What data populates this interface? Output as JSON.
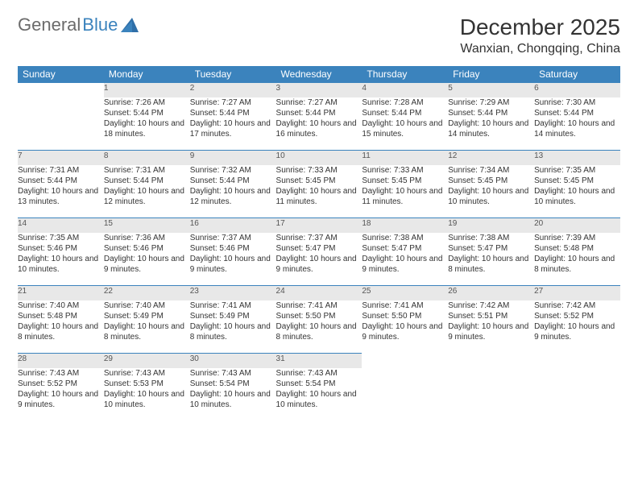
{
  "logo": {
    "part1": "General",
    "part2": "Blue"
  },
  "title": "December 2025",
  "location": "Wanxian, Chongqing, China",
  "colors": {
    "header_bg": "#3b83bd",
    "header_text": "#ffffff",
    "daynum_bg": "#e8e8e8",
    "daynum_border": "#3b83bd",
    "logo_gray": "#6b6b6b",
    "logo_blue": "#3b83bd"
  },
  "weekdays": [
    "Sunday",
    "Monday",
    "Tuesday",
    "Wednesday",
    "Thursday",
    "Friday",
    "Saturday"
  ],
  "weeks": [
    [
      null,
      {
        "n": "1",
        "sr": "Sunrise: 7:26 AM",
        "ss": "Sunset: 5:44 PM",
        "dl": "Daylight: 10 hours and 18 minutes."
      },
      {
        "n": "2",
        "sr": "Sunrise: 7:27 AM",
        "ss": "Sunset: 5:44 PM",
        "dl": "Daylight: 10 hours and 17 minutes."
      },
      {
        "n": "3",
        "sr": "Sunrise: 7:27 AM",
        "ss": "Sunset: 5:44 PM",
        "dl": "Daylight: 10 hours and 16 minutes."
      },
      {
        "n": "4",
        "sr": "Sunrise: 7:28 AM",
        "ss": "Sunset: 5:44 PM",
        "dl": "Daylight: 10 hours and 15 minutes."
      },
      {
        "n": "5",
        "sr": "Sunrise: 7:29 AM",
        "ss": "Sunset: 5:44 PM",
        "dl": "Daylight: 10 hours and 14 minutes."
      },
      {
        "n": "6",
        "sr": "Sunrise: 7:30 AM",
        "ss": "Sunset: 5:44 PM",
        "dl": "Daylight: 10 hours and 14 minutes."
      }
    ],
    [
      {
        "n": "7",
        "sr": "Sunrise: 7:31 AM",
        "ss": "Sunset: 5:44 PM",
        "dl": "Daylight: 10 hours and 13 minutes."
      },
      {
        "n": "8",
        "sr": "Sunrise: 7:31 AM",
        "ss": "Sunset: 5:44 PM",
        "dl": "Daylight: 10 hours and 12 minutes."
      },
      {
        "n": "9",
        "sr": "Sunrise: 7:32 AM",
        "ss": "Sunset: 5:44 PM",
        "dl": "Daylight: 10 hours and 12 minutes."
      },
      {
        "n": "10",
        "sr": "Sunrise: 7:33 AM",
        "ss": "Sunset: 5:45 PM",
        "dl": "Daylight: 10 hours and 11 minutes."
      },
      {
        "n": "11",
        "sr": "Sunrise: 7:33 AM",
        "ss": "Sunset: 5:45 PM",
        "dl": "Daylight: 10 hours and 11 minutes."
      },
      {
        "n": "12",
        "sr": "Sunrise: 7:34 AM",
        "ss": "Sunset: 5:45 PM",
        "dl": "Daylight: 10 hours and 10 minutes."
      },
      {
        "n": "13",
        "sr": "Sunrise: 7:35 AM",
        "ss": "Sunset: 5:45 PM",
        "dl": "Daylight: 10 hours and 10 minutes."
      }
    ],
    [
      {
        "n": "14",
        "sr": "Sunrise: 7:35 AM",
        "ss": "Sunset: 5:46 PM",
        "dl": "Daylight: 10 hours and 10 minutes."
      },
      {
        "n": "15",
        "sr": "Sunrise: 7:36 AM",
        "ss": "Sunset: 5:46 PM",
        "dl": "Daylight: 10 hours and 9 minutes."
      },
      {
        "n": "16",
        "sr": "Sunrise: 7:37 AM",
        "ss": "Sunset: 5:46 PM",
        "dl": "Daylight: 10 hours and 9 minutes."
      },
      {
        "n": "17",
        "sr": "Sunrise: 7:37 AM",
        "ss": "Sunset: 5:47 PM",
        "dl": "Daylight: 10 hours and 9 minutes."
      },
      {
        "n": "18",
        "sr": "Sunrise: 7:38 AM",
        "ss": "Sunset: 5:47 PM",
        "dl": "Daylight: 10 hours and 9 minutes."
      },
      {
        "n": "19",
        "sr": "Sunrise: 7:38 AM",
        "ss": "Sunset: 5:47 PM",
        "dl": "Daylight: 10 hours and 8 minutes."
      },
      {
        "n": "20",
        "sr": "Sunrise: 7:39 AM",
        "ss": "Sunset: 5:48 PM",
        "dl": "Daylight: 10 hours and 8 minutes."
      }
    ],
    [
      {
        "n": "21",
        "sr": "Sunrise: 7:40 AM",
        "ss": "Sunset: 5:48 PM",
        "dl": "Daylight: 10 hours and 8 minutes."
      },
      {
        "n": "22",
        "sr": "Sunrise: 7:40 AM",
        "ss": "Sunset: 5:49 PM",
        "dl": "Daylight: 10 hours and 8 minutes."
      },
      {
        "n": "23",
        "sr": "Sunrise: 7:41 AM",
        "ss": "Sunset: 5:49 PM",
        "dl": "Daylight: 10 hours and 8 minutes."
      },
      {
        "n": "24",
        "sr": "Sunrise: 7:41 AM",
        "ss": "Sunset: 5:50 PM",
        "dl": "Daylight: 10 hours and 8 minutes."
      },
      {
        "n": "25",
        "sr": "Sunrise: 7:41 AM",
        "ss": "Sunset: 5:50 PM",
        "dl": "Daylight: 10 hours and 9 minutes."
      },
      {
        "n": "26",
        "sr": "Sunrise: 7:42 AM",
        "ss": "Sunset: 5:51 PM",
        "dl": "Daylight: 10 hours and 9 minutes."
      },
      {
        "n": "27",
        "sr": "Sunrise: 7:42 AM",
        "ss": "Sunset: 5:52 PM",
        "dl": "Daylight: 10 hours and 9 minutes."
      }
    ],
    [
      {
        "n": "28",
        "sr": "Sunrise: 7:43 AM",
        "ss": "Sunset: 5:52 PM",
        "dl": "Daylight: 10 hours and 9 minutes."
      },
      {
        "n": "29",
        "sr": "Sunrise: 7:43 AM",
        "ss": "Sunset: 5:53 PM",
        "dl": "Daylight: 10 hours and 10 minutes."
      },
      {
        "n": "30",
        "sr": "Sunrise: 7:43 AM",
        "ss": "Sunset: 5:54 PM",
        "dl": "Daylight: 10 hours and 10 minutes."
      },
      {
        "n": "31",
        "sr": "Sunrise: 7:43 AM",
        "ss": "Sunset: 5:54 PM",
        "dl": "Daylight: 10 hours and 10 minutes."
      },
      null,
      null,
      null
    ]
  ]
}
